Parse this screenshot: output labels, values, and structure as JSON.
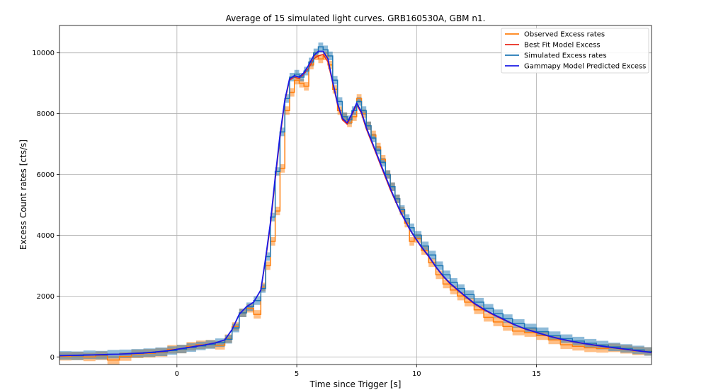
{
  "chart_data": {
    "type": "line",
    "title": "Average of 15 simulated light curves. GRB160530A, GBM n1.",
    "xlabel": "Time since Trigger [s]",
    "ylabel": "Excess Count rates [cts/s]",
    "xlim": [
      -4.9,
      19.8
    ],
    "ylim": [
      -250,
      10900
    ],
    "xticks": [
      0,
      5,
      10,
      15
    ],
    "xtick_labels": [
      "0",
      "5",
      "10",
      "15"
    ],
    "yticks": [
      0,
      2000,
      4000,
      6000,
      8000,
      10000
    ],
    "ytick_labels": [
      "0",
      "2000",
      "4000",
      "6000",
      "8000",
      "10000"
    ],
    "grid": true,
    "legend_position": "top-right",
    "x": [
      -4.9,
      -4.4,
      -3.9,
      -3.4,
      -2.9,
      -2.4,
      -1.9,
      -1.4,
      -0.9,
      -0.4,
      0.0,
      0.4,
      0.8,
      1.2,
      1.6,
      2.0,
      2.3,
      2.6,
      2.9,
      3.2,
      3.5,
      3.7,
      3.9,
      4.1,
      4.3,
      4.5,
      4.7,
      4.9,
      5.1,
      5.3,
      5.5,
      5.7,
      5.9,
      6.1,
      6.3,
      6.5,
      6.7,
      6.9,
      7.1,
      7.3,
      7.5,
      7.7,
      7.9,
      8.1,
      8.3,
      8.5,
      8.7,
      8.9,
      9.1,
      9.3,
      9.5,
      9.7,
      9.9,
      10.2,
      10.5,
      10.8,
      11.1,
      11.4,
      11.7,
      12.0,
      12.4,
      12.8,
      13.2,
      13.6,
      14.0,
      14.5,
      15.0,
      15.5,
      16.0,
      16.5,
      17.0,
      17.5,
      18.0,
      18.5,
      19.0,
      19.5,
      19.8
    ],
    "series": [
      {
        "name": "Observed Excess rates",
        "color": "#ff7f0e",
        "band": true,
        "values": [
          20,
          30,
          0,
          40,
          -100,
          10,
          100,
          120,
          150,
          250,
          260,
          350,
          400,
          420,
          380,
          600,
          1000,
          1450,
          1600,
          1400,
          2300,
          3000,
          3800,
          4800,
          6200,
          8100,
          8700,
          9100,
          9000,
          8900,
          9600,
          9900,
          9800,
          9900,
          9600,
          8800,
          8100,
          7900,
          7700,
          7900,
          8500,
          8000,
          7600,
          7300,
          6900,
          6500,
          6000,
          5600,
          5200,
          4800,
          4400,
          3800,
          3900,
          3500,
          3100,
          2700,
          2400,
          2200,
          2000,
          1800,
          1550,
          1300,
          1150,
          1000,
          850,
          800,
          700,
          560,
          400,
          350,
          300,
          280,
          300,
          250,
          200,
          180,
          160
        ]
      },
      {
        "name": "Best Fit Model Excess",
        "color": "#e8291c",
        "band": false,
        "values": [
          40,
          50,
          60,
          70,
          80,
          90,
          110,
          130,
          160,
          200,
          250,
          300,
          350,
          400,
          460,
          560,
          900,
          1400,
          1650,
          1800,
          2200,
          3200,
          4300,
          5800,
          7200,
          8400,
          9100,
          9200,
          9150,
          9300,
          9500,
          9800,
          9900,
          9950,
          9700,
          9000,
          8300,
          7800,
          7650,
          7950,
          8300,
          8000,
          7500,
          7100,
          6700,
          6300,
          5900,
          5500,
          5150,
          4800,
          4500,
          4200,
          3950,
          3600,
          3300,
          2950,
          2650,
          2400,
          2200,
          2000,
          1750,
          1550,
          1380,
          1230,
          1080,
          920,
          800,
          680,
          580,
          500,
          430,
          370,
          320,
          270,
          220,
          170,
          140
        ]
      },
      {
        "name": "Simulated Excess rates",
        "color": "#1f77b4",
        "band": true,
        "values": [
          50,
          40,
          70,
          60,
          90,
          100,
          120,
          140,
          170,
          210,
          260,
          310,
          360,
          410,
          470,
          580,
          950,
          1450,
          1650,
          1850,
          2250,
          3300,
          4600,
          6100,
          7400,
          8500,
          9200,
          9300,
          9200,
          9400,
          9700,
          10000,
          10200,
          10100,
          9900,
          9100,
          8400,
          7900,
          7800,
          8100,
          8400,
          8100,
          7600,
          7200,
          6800,
          6400,
          6000,
          5600,
          5200,
          4850,
          4550,
          4250,
          4000,
          3650,
          3350,
          3000,
          2700,
          2450,
          2250,
          2050,
          1800,
          1600,
          1420,
          1260,
          1100,
          950,
          830,
          700,
          600,
          520,
          450,
          390,
          330,
          280,
          230,
          180,
          150
        ]
      },
      {
        "name": "Gammapy Model Predicted Excess",
        "color": "#1a1ae6",
        "band": false,
        "values": [
          40,
          50,
          60,
          70,
          80,
          90,
          110,
          130,
          160,
          200,
          250,
          300,
          350,
          400,
          460,
          560,
          900,
          1400,
          1650,
          1800,
          2200,
          3250,
          4400,
          5900,
          7300,
          8450,
          9150,
          9250,
          9200,
          9350,
          9600,
          9900,
          10050,
          10050,
          9800,
          9050,
          8350,
          7850,
          7700,
          8000,
          8350,
          8050,
          7550,
          7150,
          6750,
          6350,
          5950,
          5550,
          5180,
          4820,
          4520,
          4220,
          3970,
          3620,
          3320,
          2970,
          2670,
          2420,
          2220,
          2020,
          1770,
          1570,
          1400,
          1250,
          1090,
          930,
          810,
          690,
          590,
          510,
          440,
          380,
          325,
          275,
          225,
          175,
          145
        ]
      }
    ]
  }
}
